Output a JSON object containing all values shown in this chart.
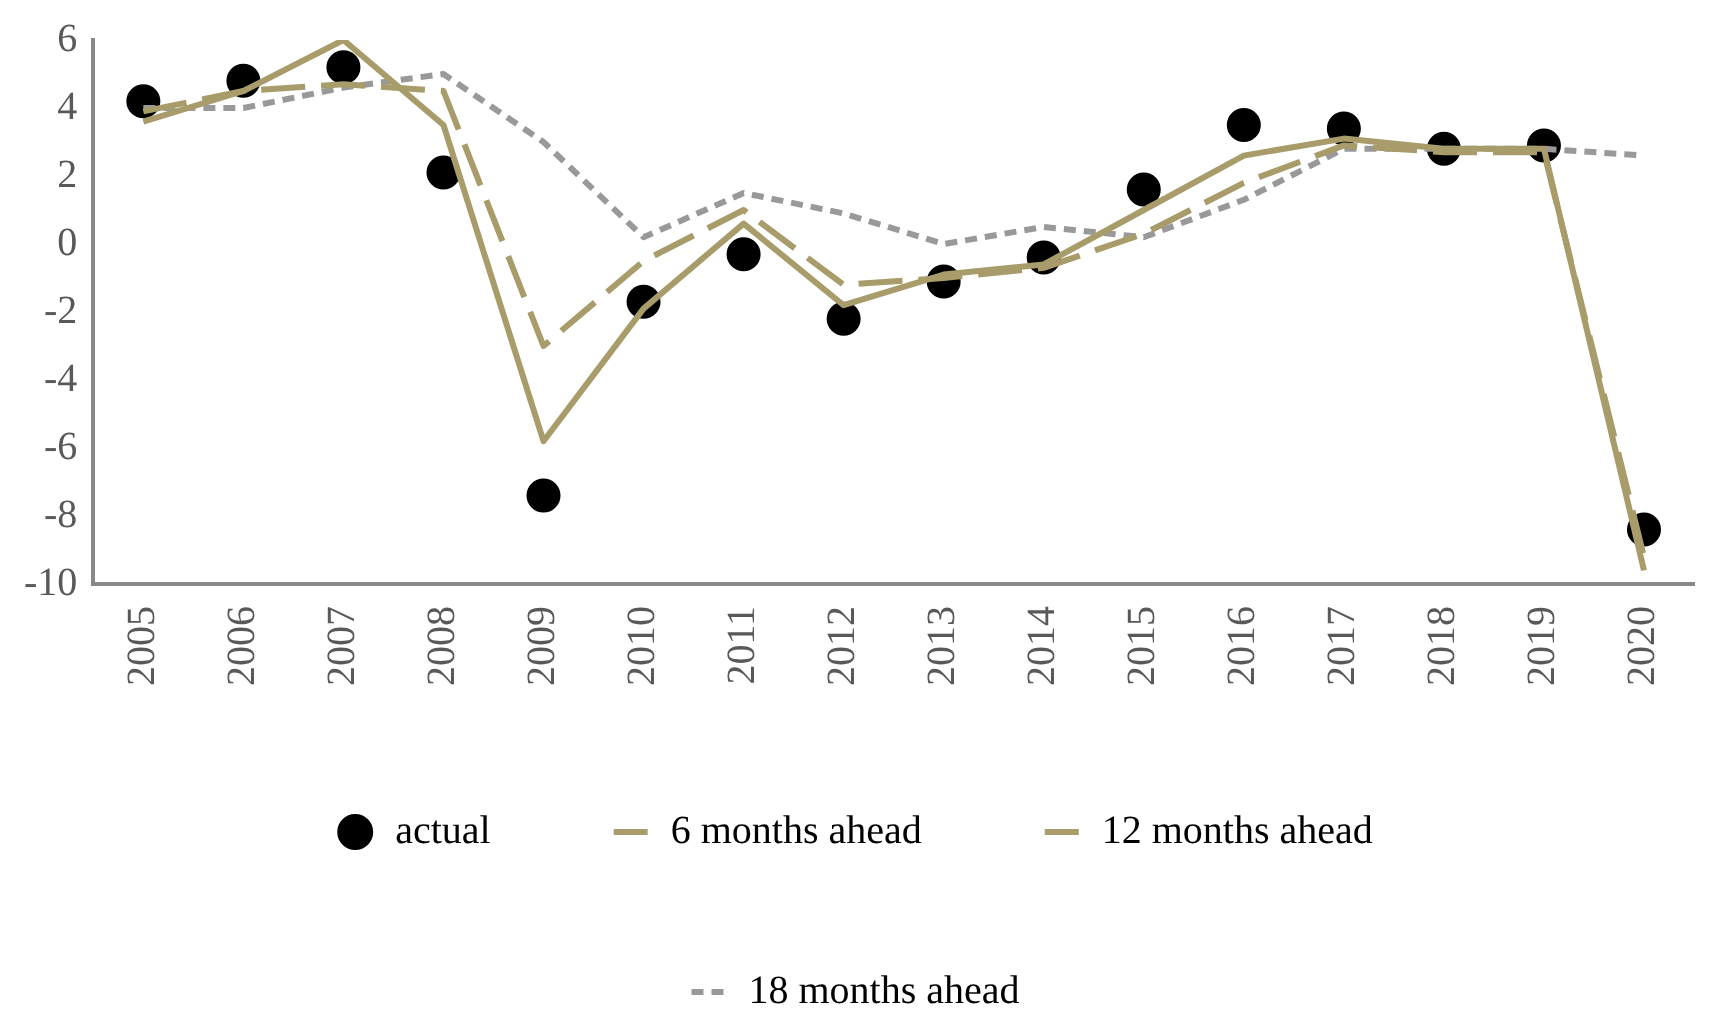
{
  "chart_data": {
    "type": "line",
    "categories": [
      "2005",
      "2006",
      "2007",
      "2008",
      "2009",
      "2010",
      "2011",
      "2012",
      "2013",
      "2014",
      "2015",
      "2016",
      "2017",
      "2018",
      "2019",
      "2020"
    ],
    "series": [
      {
        "name": "actual",
        "type": "scatter",
        "marker": "circle",
        "color": "#000000",
        "values": [
          4.2,
          4.8,
          5.2,
          2.1,
          -7.4,
          -1.7,
          -0.3,
          -2.2,
          -1.1,
          -0.4,
          1.6,
          3.5,
          3.4,
          2.8,
          2.9,
          -8.4
        ]
      },
      {
        "name": "6 months ahead",
        "line_style": "solid",
        "marker": "none",
        "color": "#a89c6a",
        "values": [
          3.6,
          4.5,
          6.0,
          3.5,
          -5.8,
          -1.9,
          0.6,
          -1.8,
          -0.9,
          -0.6,
          1.0,
          2.6,
          3.1,
          2.8,
          2.8,
          -9.6
        ]
      },
      {
        "name": "12 months ahead",
        "line_style": "dashed",
        "marker": "none",
        "color": "#a89c6a",
        "values": [
          3.9,
          4.5,
          4.7,
          4.5,
          -3.0,
          -0.5,
          1.0,
          -1.2,
          -1.0,
          -0.7,
          0.3,
          1.8,
          2.9,
          2.7,
          2.7,
          -9.2
        ]
      },
      {
        "name": "18 months ahead",
        "line_style": "dotted",
        "marker": "none",
        "color": "#999999",
        "values": [
          4.0,
          4.0,
          4.6,
          5.0,
          3.0,
          0.2,
          1.5,
          0.9,
          0.0,
          0.5,
          0.2,
          1.3,
          2.8,
          2.8,
          2.8,
          2.6
        ]
      }
    ],
    "ylim": [
      -10,
      6
    ],
    "yticks": [
      -10,
      -8,
      -6,
      -4,
      -2,
      0,
      2,
      4,
      6
    ],
    "grid": false,
    "legend": "bottom"
  }
}
